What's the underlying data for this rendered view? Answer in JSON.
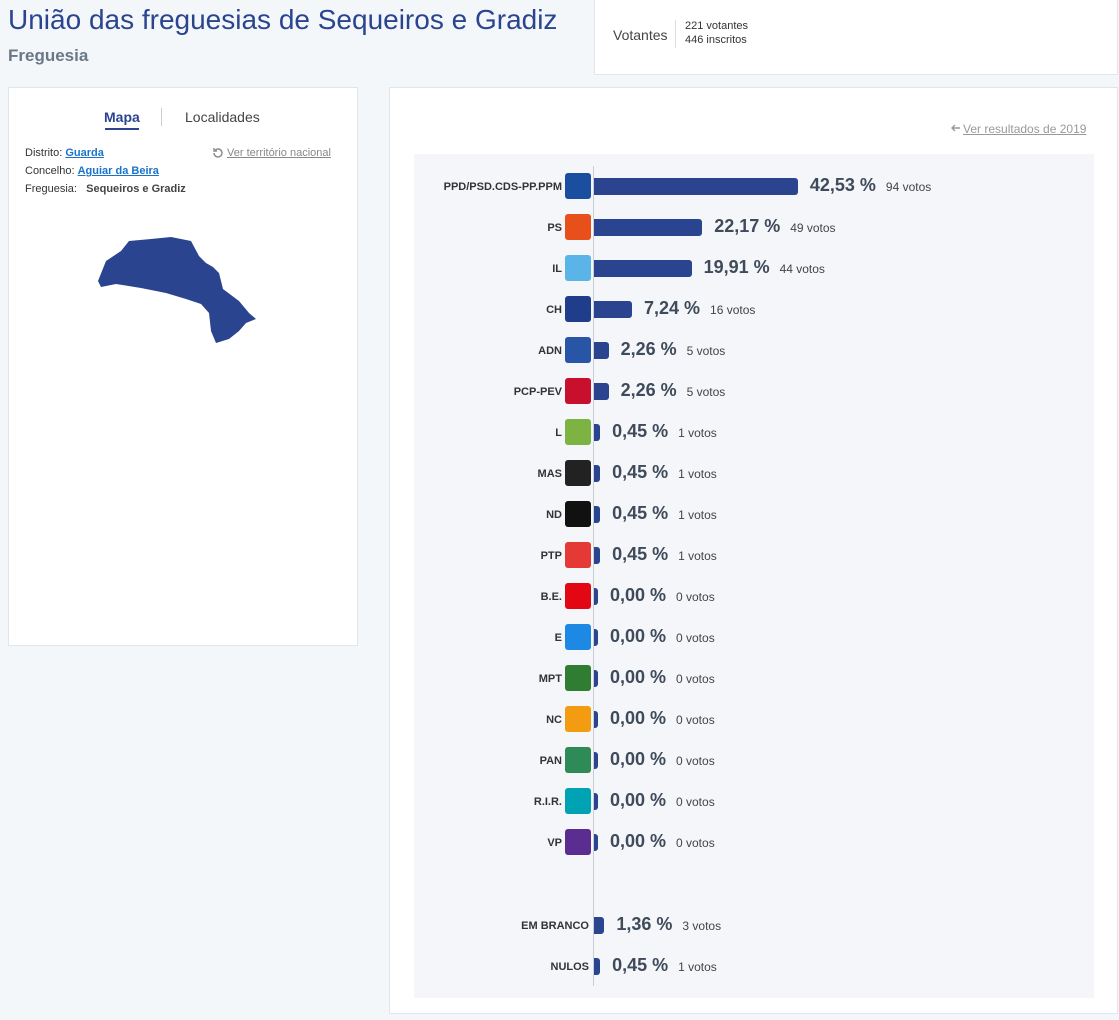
{
  "header": {
    "title": "União das freguesias de Sequeiros e Gradiz",
    "subtitle": "Freguesia"
  },
  "turnout": {
    "label": "Votantes",
    "voters": "221 votantes",
    "registered": "446 inscritos"
  },
  "sidebar": {
    "tabs": [
      "Mapa",
      "Localidades"
    ],
    "national_link": "Ver território nacional",
    "location": [
      {
        "label": "Distrito:",
        "value": "Guarda"
      },
      {
        "label": "Concelho:",
        "value": "Aguiar da Beira"
      },
      {
        "label": "Freguesia:",
        "value": "Sequeiros e Gradiz"
      }
    ]
  },
  "results": {
    "previous_link": "Ver resultados de 2019",
    "parties": [
      {
        "party": "PPD/PSD.CDS-PP.PPM",
        "value": 42.53,
        "value_label": "42,53 %",
        "votes": "94 votos"
      },
      {
        "party": "PS",
        "value": 22.17,
        "value_label": "22,17 %",
        "votes": "49 votos"
      },
      {
        "party": "IL",
        "value": 19.91,
        "value_label": "19,91 %",
        "votes": "44 votos"
      },
      {
        "party": "CH",
        "value": 7.24,
        "value_label": "7,24 %",
        "votes": "16 votos"
      },
      {
        "party": "ADN",
        "value": 2.26,
        "value_label": "2,26 %",
        "votes": "5 votos"
      },
      {
        "party": "PCP-PEV",
        "value": 2.26,
        "value_label": "2,26 %",
        "votes": "5 votos"
      },
      {
        "party": "L",
        "value": 0.45,
        "value_label": "0,45 %",
        "votes": "1 votos"
      },
      {
        "party": "MAS",
        "value": 0.45,
        "value_label": "0,45 %",
        "votes": "1 votos"
      },
      {
        "party": "ND",
        "value": 0.45,
        "value_label": "0,45 %",
        "votes": "1 votos"
      },
      {
        "party": "PTP",
        "value": 0.45,
        "value_label": "0,45 %",
        "votes": "1 votos"
      },
      {
        "party": "B.E.",
        "value": 0,
        "value_label": "0,00 %",
        "votes": "0 votos"
      },
      {
        "party": "E",
        "value": 0,
        "value_label": "0,00 %",
        "votes": "0 votos"
      },
      {
        "party": "MPT",
        "value": 0,
        "value_label": "0,00 %",
        "votes": "0 votos"
      },
      {
        "party": "NC",
        "value": 0,
        "value_label": "0,00 %",
        "votes": "0 votos"
      },
      {
        "party": "PAN",
        "value": 0,
        "value_label": "0,00 %",
        "votes": "0 votos"
      },
      {
        "party": "R.I.R.",
        "value": 0,
        "value_label": "0,00 %",
        "votes": "0 votos"
      },
      {
        "party": "VP",
        "value": 0,
        "value_label": "0,00 %",
        "votes": "0 votos"
      }
    ],
    "other": [
      {
        "party": "EM BRANCO",
        "value": 1.36,
        "value_label": "1,36 %",
        "votes": "3 votos"
      },
      {
        "party": "NULOS",
        "value": 0.45,
        "value_label": "0,45 %",
        "votes": "1 votos"
      }
    ]
  }
}
